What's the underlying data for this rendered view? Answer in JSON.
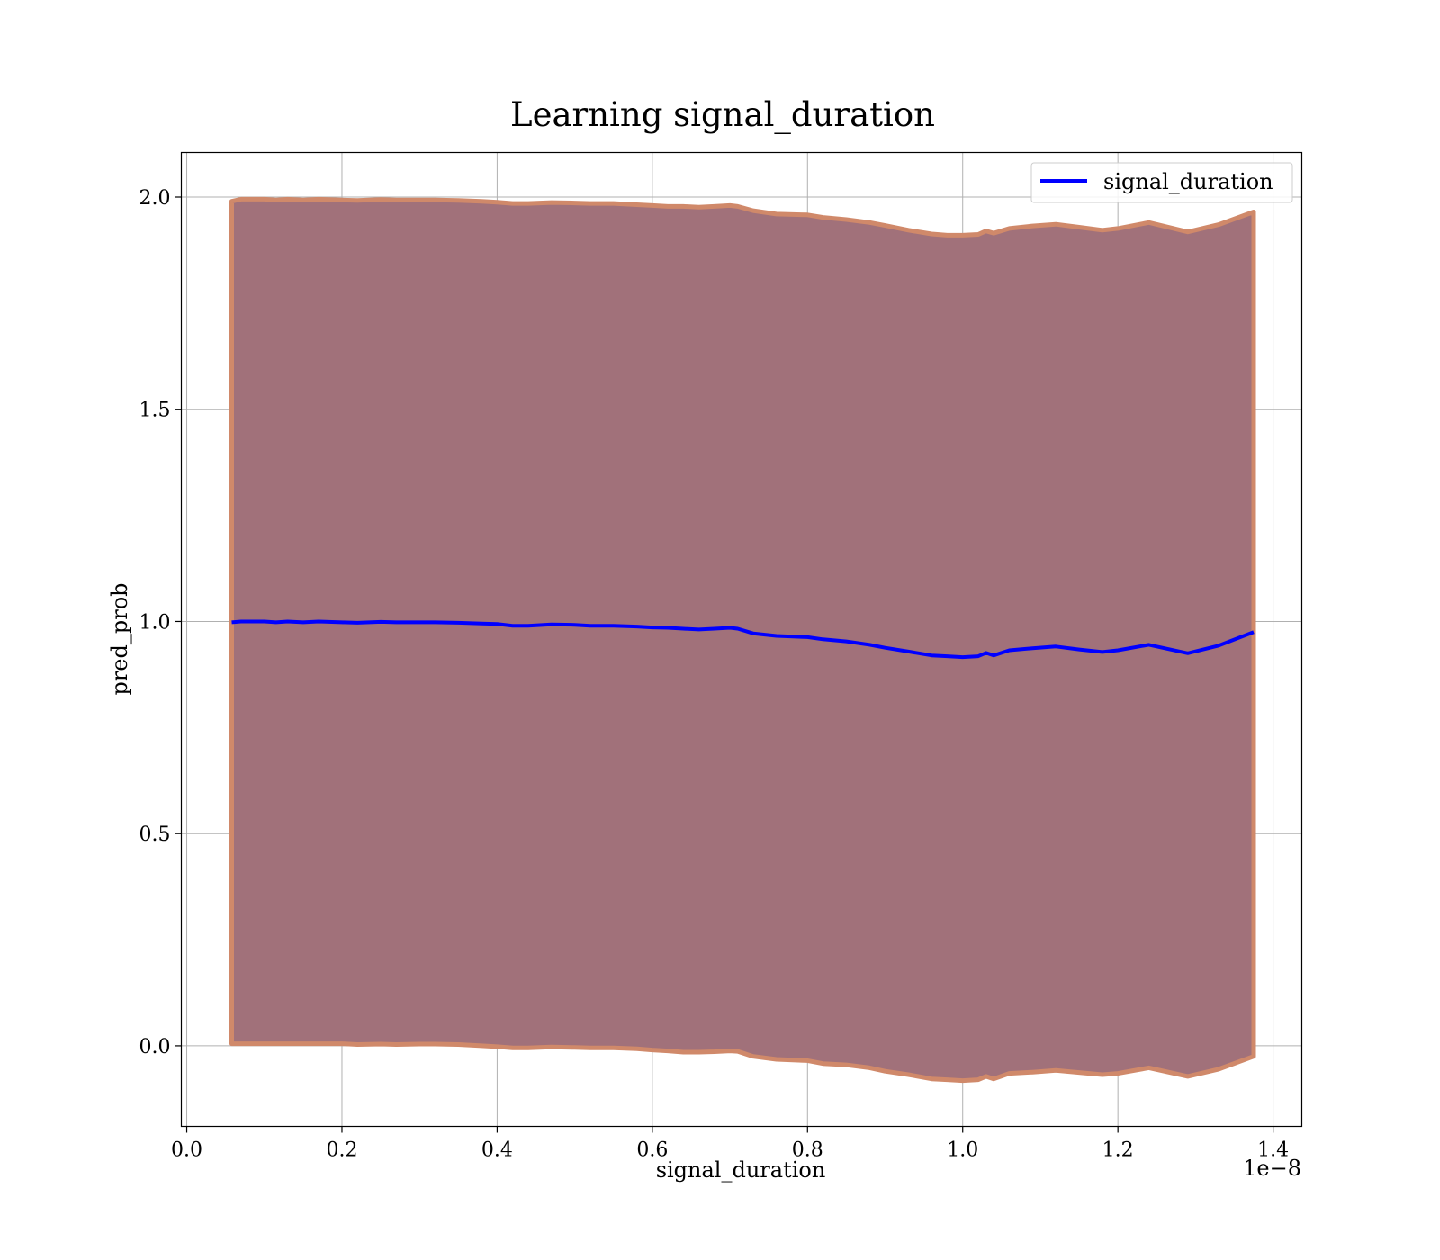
{
  "chart_data": {
    "type": "line",
    "title": "Learning signal_duration",
    "xlabel": "signal_duration",
    "ylabel": "pred_prob",
    "x_offset_label": "1e−8",
    "xlim": [
      -0.007,
      1.437
    ],
    "ylim": [
      -0.19,
      2.105
    ],
    "xticks": [
      0.0,
      0.2,
      0.4,
      0.6,
      0.8,
      1.0,
      1.2,
      1.4
    ],
    "xtick_labels": [
      "0.0",
      "0.2",
      "0.4",
      "0.6",
      "0.8",
      "1.0",
      "1.2",
      "1.4"
    ],
    "yticks": [
      0.0,
      0.5,
      1.0,
      1.5,
      2.0
    ],
    "ytick_labels": [
      "0.0",
      "0.5",
      "1.0",
      "1.5",
      "2.0"
    ],
    "grid": true,
    "legend_position": "top-right",
    "colors": {
      "line": "#0000ff",
      "band_fill": "#a1717a",
      "band_edge": "#d0896a",
      "grid": "#b0b0b0"
    },
    "series": [
      {
        "name": "signal_duration",
        "x": [
          0.058,
          0.07,
          0.085,
          0.1,
          0.115,
          0.13,
          0.15,
          0.17,
          0.2,
          0.22,
          0.25,
          0.27,
          0.3,
          0.32,
          0.35,
          0.38,
          0.4,
          0.42,
          0.44,
          0.47,
          0.5,
          0.52,
          0.55,
          0.58,
          0.6,
          0.62,
          0.64,
          0.66,
          0.68,
          0.7,
          0.71,
          0.73,
          0.76,
          0.8,
          0.82,
          0.85,
          0.88,
          0.9,
          0.93,
          0.96,
          0.98,
          1.0,
          1.02,
          1.03,
          1.04,
          1.06,
          1.09,
          1.12,
          1.15,
          1.18,
          1.2,
          1.24,
          1.29,
          1.33,
          1.375
        ],
        "y": [
          0.998,
          1.0,
          1.0,
          1.0,
          0.998,
          1.0,
          0.998,
          1.0,
          0.998,
          0.997,
          0.999,
          0.998,
          0.998,
          0.998,
          0.997,
          0.995,
          0.994,
          0.99,
          0.99,
          0.993,
          0.992,
          0.99,
          0.99,
          0.988,
          0.986,
          0.985,
          0.983,
          0.981,
          0.983,
          0.985,
          0.983,
          0.972,
          0.966,
          0.963,
          0.958,
          0.953,
          0.945,
          0.938,
          0.929,
          0.92,
          0.918,
          0.916,
          0.918,
          0.926,
          0.92,
          0.932,
          0.937,
          0.941,
          0.934,
          0.928,
          0.932,
          0.945,
          0.925,
          0.943,
          0.975
        ],
        "lower": [
          0.005,
          0.005,
          0.005,
          0.005,
          0.005,
          0.005,
          0.005,
          0.005,
          0.005,
          0.003,
          0.004,
          0.003,
          0.004,
          0.004,
          0.003,
          0.0,
          -0.002,
          -0.005,
          -0.005,
          -0.003,
          -0.004,
          -0.005,
          -0.005,
          -0.007,
          -0.01,
          -0.012,
          -0.015,
          -0.015,
          -0.014,
          -0.012,
          -0.013,
          -0.025,
          -0.032,
          -0.035,
          -0.042,
          -0.045,
          -0.052,
          -0.06,
          -0.068,
          -0.078,
          -0.08,
          -0.082,
          -0.08,
          -0.072,
          -0.078,
          -0.065,
          -0.062,
          -0.058,
          -0.063,
          -0.068,
          -0.065,
          -0.052,
          -0.072,
          -0.055,
          -0.025
        ],
        "upper": [
          1.99,
          1.995,
          1.995,
          1.995,
          1.993,
          1.995,
          1.993,
          1.995,
          1.993,
          1.992,
          1.994,
          1.993,
          1.993,
          1.993,
          1.992,
          1.99,
          1.988,
          1.985,
          1.985,
          1.987,
          1.986,
          1.985,
          1.985,
          1.982,
          1.98,
          1.978,
          1.978,
          1.976,
          1.978,
          1.98,
          1.978,
          1.968,
          1.96,
          1.958,
          1.952,
          1.947,
          1.94,
          1.933,
          1.922,
          1.913,
          1.91,
          1.91,
          1.912,
          1.92,
          1.915,
          1.926,
          1.932,
          1.936,
          1.929,
          1.922,
          1.926,
          1.94,
          1.918,
          1.935,
          1.965
        ]
      }
    ]
  }
}
